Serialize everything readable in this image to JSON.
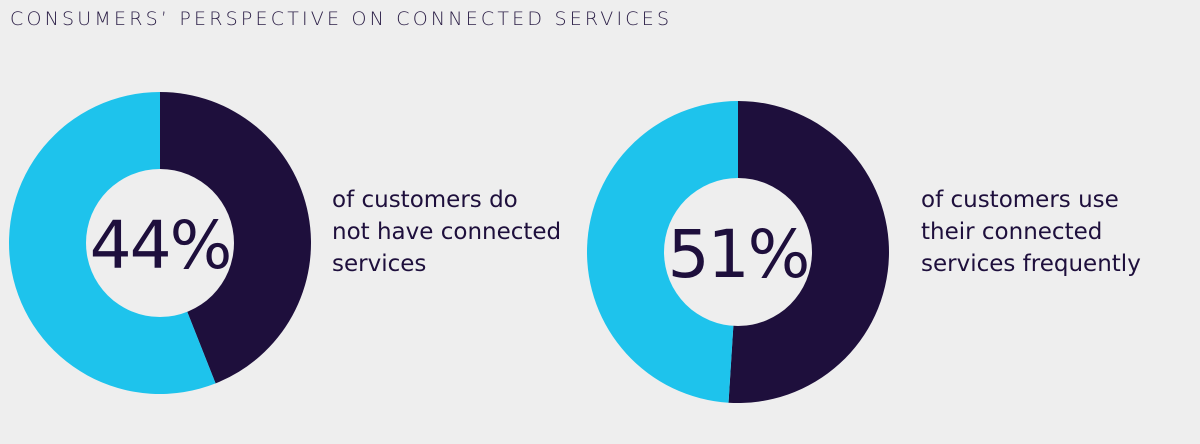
{
  "title": "CONSUMERS’ PERSPECTIVE ON CONNECTED SERVICES",
  "colors": {
    "dark": "#1e0f3c",
    "light": "#1ec3ec",
    "background": "#eeeeee"
  },
  "chart_data": [
    {
      "type": "pie",
      "center_label": "44%",
      "slices": [
        {
          "value": 44,
          "color": "#1e0f3c"
        },
        {
          "value": 56,
          "color": "#1ec3ec"
        }
      ],
      "caption": [
        "of customers do",
        "not have connected",
        "services"
      ]
    },
    {
      "type": "pie",
      "center_label": "51%",
      "slices": [
        {
          "value": 51,
          "color": "#1e0f3c"
        },
        {
          "value": 49,
          "color": "#1ec3ec"
        }
      ],
      "caption": [
        "of customers use",
        "their connected",
        "services frequently"
      ]
    }
  ]
}
